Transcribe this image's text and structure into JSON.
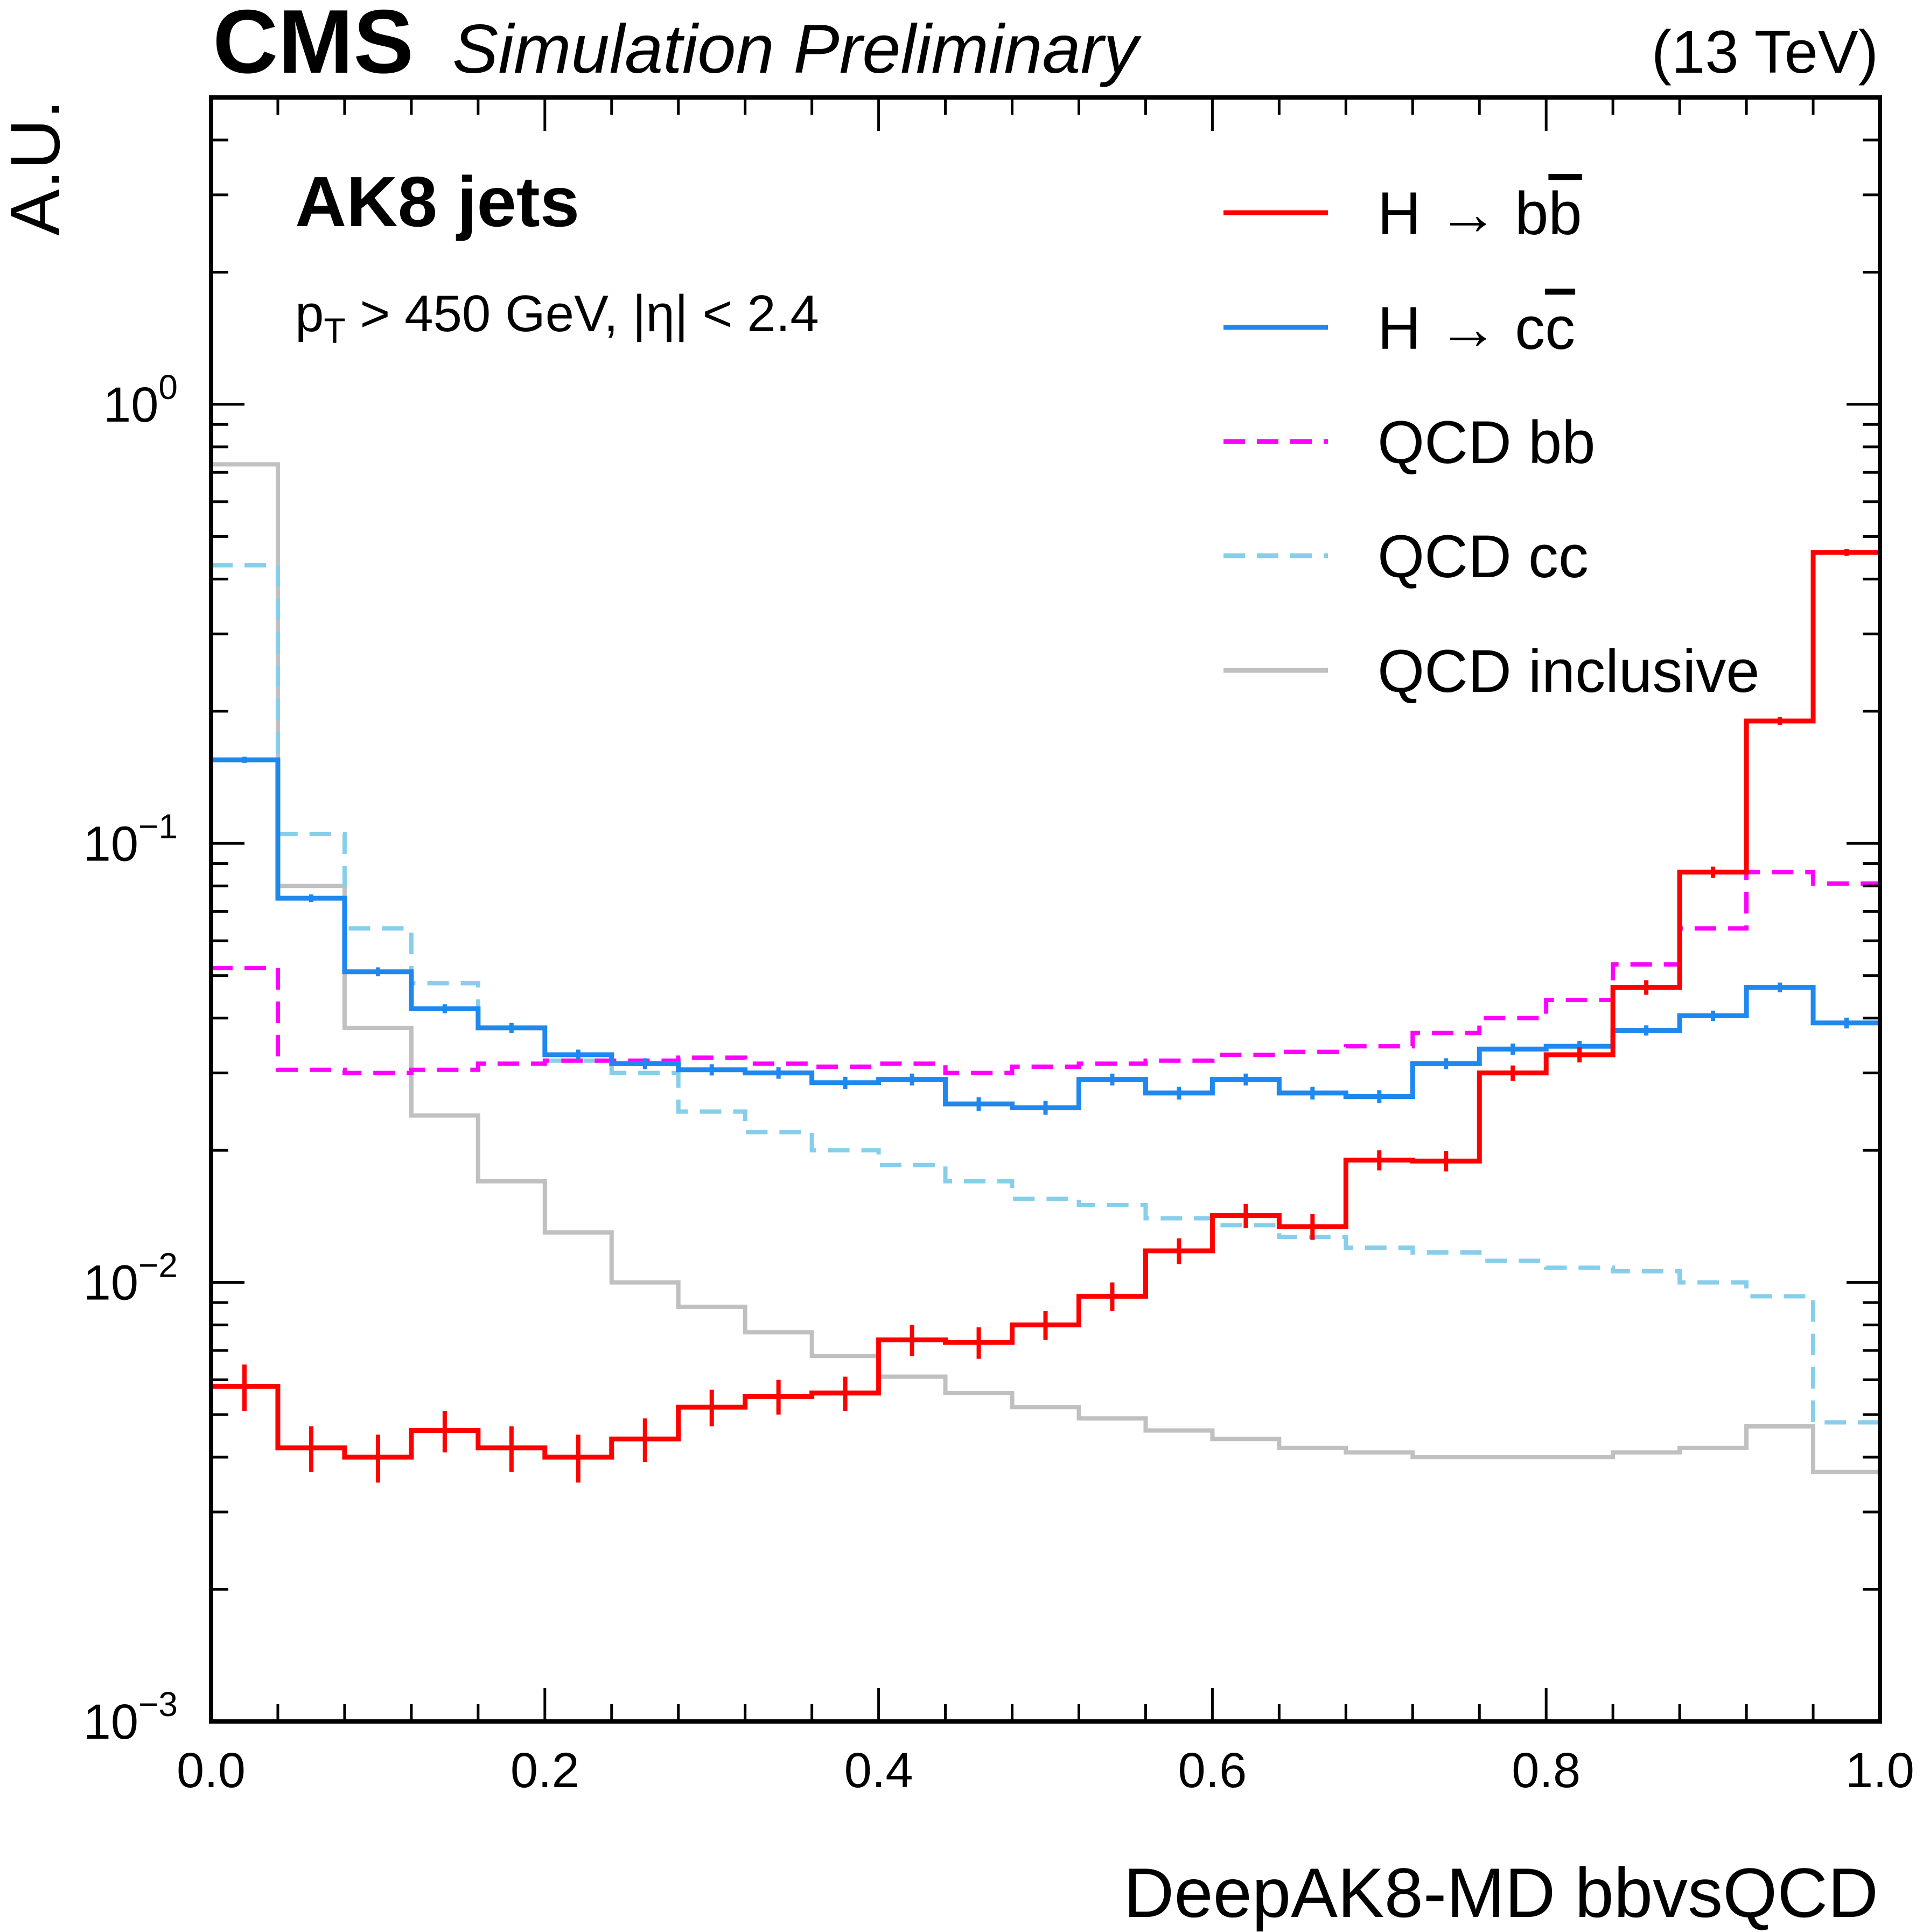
{
  "chart_data": {
    "type": "line",
    "header": {
      "experiment": "CMS",
      "status": "Simulation Preliminary",
      "energy": "(13 TeV)"
    },
    "annotations": {
      "title": "AK8 jets",
      "cuts": {
        "pt_symbol": "p",
        "pt_subscript": "T",
        "rest": " > 450 GeV, |η| < 2.4"
      }
    },
    "xlabel": "DeepAK8-MD bbvsQCD",
    "ylabel": "A.U.",
    "xlim": [
      0.0,
      1.0
    ],
    "ylim": [
      0.001,
      5.0
    ],
    "yscale": "log",
    "x_ticks": [
      "0.0",
      "0.2",
      "0.4",
      "0.6",
      "0.8",
      "1.0"
    ],
    "y_ticks": [
      {
        "base": "10",
        "exp": "0"
      },
      {
        "base": "10",
        "exp": "−1"
      },
      {
        "base": "10",
        "exp": "−2"
      },
      {
        "base": "10",
        "exp": "−3"
      }
    ],
    "bin_edges": [
      0.0,
      0.04,
      0.08,
      0.12,
      0.16,
      0.2,
      0.24,
      0.28,
      0.32,
      0.36,
      0.4,
      0.44,
      0.48,
      0.52,
      0.56,
      0.6,
      0.64,
      0.68,
      0.72,
      0.76,
      0.8,
      0.84,
      0.88,
      0.92,
      0.96,
      1.0
    ],
    "series": [
      {
        "name": "H → bb̄",
        "label_main": "H → b",
        "label_bar": "b",
        "color": "#ff0000",
        "style": "solid",
        "errorbars": true,
        "values": [
          0.0058,
          0.0042,
          0.004,
          0.0046,
          0.0042,
          0.004,
          0.0044,
          0.0052,
          0.0055,
          0.0056,
          0.0074,
          0.0073,
          0.008,
          0.0093,
          0.0118,
          0.0142,
          0.0134,
          0.019,
          0.0189,
          0.03,
          0.033,
          0.047,
          0.086,
          0.19,
          0.46
        ],
        "errors": [
          0.0007,
          0.0005,
          0.0005,
          0.0005,
          0.0005,
          0.0005,
          0.0005,
          0.0005,
          0.0005,
          0.0005,
          0.0006,
          0.0006,
          0.0006,
          0.0007,
          0.0008,
          0.0009,
          0.0009,
          0.001,
          0.001,
          0.0012,
          0.0013,
          0.0018,
          0.0025,
          0.004,
          0.008
        ]
      },
      {
        "name": "H → cc̄",
        "label_main": "H → c",
        "label_bar": "c",
        "color": "#1e88ee",
        "style": "solid",
        "errorbars": true,
        "values": [
          0.155,
          0.075,
          0.051,
          0.042,
          0.038,
          0.033,
          0.0315,
          0.0305,
          0.03,
          0.0285,
          0.029,
          0.0255,
          0.025,
          0.029,
          0.027,
          0.029,
          0.027,
          0.0265,
          0.0315,
          0.034,
          0.0345,
          0.0375,
          0.0405,
          0.047,
          0.039
        ],
        "errors": [
          0.0025,
          0.0015,
          0.0012,
          0.001,
          0.001,
          0.0009,
          0.0009,
          0.0009,
          0.0009,
          0.0009,
          0.0009,
          0.0009,
          0.0009,
          0.0009,
          0.0009,
          0.0009,
          0.0009,
          0.0009,
          0.0009,
          0.001,
          0.001,
          0.001,
          0.0011,
          0.0012,
          0.0011
        ]
      },
      {
        "name": "QCD bb",
        "color": "#ff00ff",
        "style": "dashed",
        "errorbars": false,
        "values": [
          0.052,
          0.0305,
          0.03,
          0.0305,
          0.0315,
          0.032,
          0.032,
          0.0325,
          0.0315,
          0.031,
          0.0315,
          0.03,
          0.031,
          0.0315,
          0.032,
          0.033,
          0.0335,
          0.0345,
          0.037,
          0.04,
          0.044,
          0.053,
          0.064,
          0.086,
          0.081
        ]
      },
      {
        "name": "QCD cc",
        "color": "#87ceeb",
        "style": "dashed",
        "errorbars": false,
        "values": [
          0.43,
          0.105,
          0.064,
          0.048,
          0.038,
          0.032,
          0.03,
          0.0245,
          0.022,
          0.02,
          0.0185,
          0.017,
          0.0155,
          0.015,
          0.014,
          0.0135,
          0.0127,
          0.012,
          0.0117,
          0.0112,
          0.0108,
          0.0106,
          0.01,
          0.0093,
          0.0048
        ]
      },
      {
        "name": "QCD inclusive",
        "color": "#c0c0c0",
        "style": "solid",
        "errorbars": false,
        "values": [
          0.73,
          0.08,
          0.038,
          0.024,
          0.017,
          0.013,
          0.01,
          0.0088,
          0.0077,
          0.0068,
          0.0061,
          0.0056,
          0.0052,
          0.0049,
          0.0046,
          0.0044,
          0.0042,
          0.0041,
          0.004,
          0.004,
          0.004,
          0.0041,
          0.0042,
          0.0047,
          0.0037
        ]
      }
    ],
    "legend_position": "top-right"
  }
}
